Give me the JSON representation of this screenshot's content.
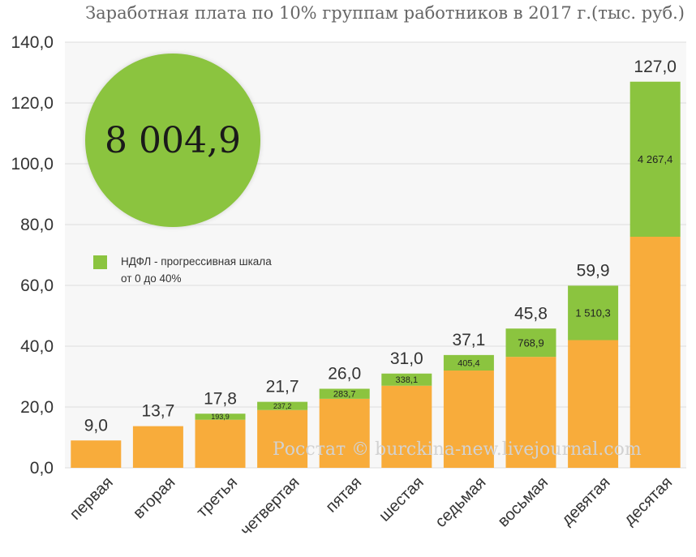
{
  "chart_data": {
    "type": "bar",
    "stacked": true,
    "title": "Заработная плата по 10% группам работников в 2017 г.(тыс. руб.)",
    "categories": [
      "первая",
      "вторая",
      "третья",
      "четвертая",
      "пятая",
      "шестая",
      "седьмая",
      "восьмая",
      "девятая",
      "десятая"
    ],
    "totals": [
      9.0,
      13.7,
      17.8,
      21.7,
      26.0,
      31.0,
      37.1,
      45.8,
      59.9,
      127.0
    ],
    "total_labels": [
      "9,0",
      "13,7",
      "17,8",
      "21,7",
      "26,0",
      "31,0",
      "37,1",
      "45,8",
      "59,9",
      "127,0"
    ],
    "series": [
      {
        "values": [
          9.0,
          13.7,
          15.8,
          19.0,
          22.7,
          27.0,
          32.0,
          36.5,
          42.0,
          76.0
        ],
        "color": "#F8AC3B"
      },
      {
        "name": "НДФЛ - прогрессивная шкала от 0 до 40%",
        "values": [
          0,
          0,
          2.0,
          2.7,
          3.3,
          4.0,
          5.1,
          9.3,
          17.9,
          51.0
        ],
        "color": "#8BC43F"
      }
    ],
    "segment_labels": [
      "",
      "",
      "193,9",
      "237,2",
      "283,7",
      "338,1",
      "405,4",
      "768,9",
      "1 510,3",
      "4 267,4"
    ],
    "ylim": [
      0,
      140
    ],
    "yticks": [
      0,
      20,
      40,
      60,
      80,
      100,
      120,
      140
    ],
    "ytick_labels": [
      "0,0",
      "20,0",
      "40,0",
      "60,0",
      "80,0",
      "100,0",
      "120,0",
      "140,0"
    ],
    "grid": true,
    "legend": "left",
    "total_annotation": "8 004,9",
    "legend_label": "НДФЛ - прогрессивная шкала\nот 0 до 40%",
    "watermark": "Росстат © burckina-new.livejournal.com"
  },
  "colors": {
    "base": "#F8AC3B",
    "tax": "#8BC43F",
    "grid": "#dcdcdc",
    "plot_bg": "#f7f7f7"
  }
}
